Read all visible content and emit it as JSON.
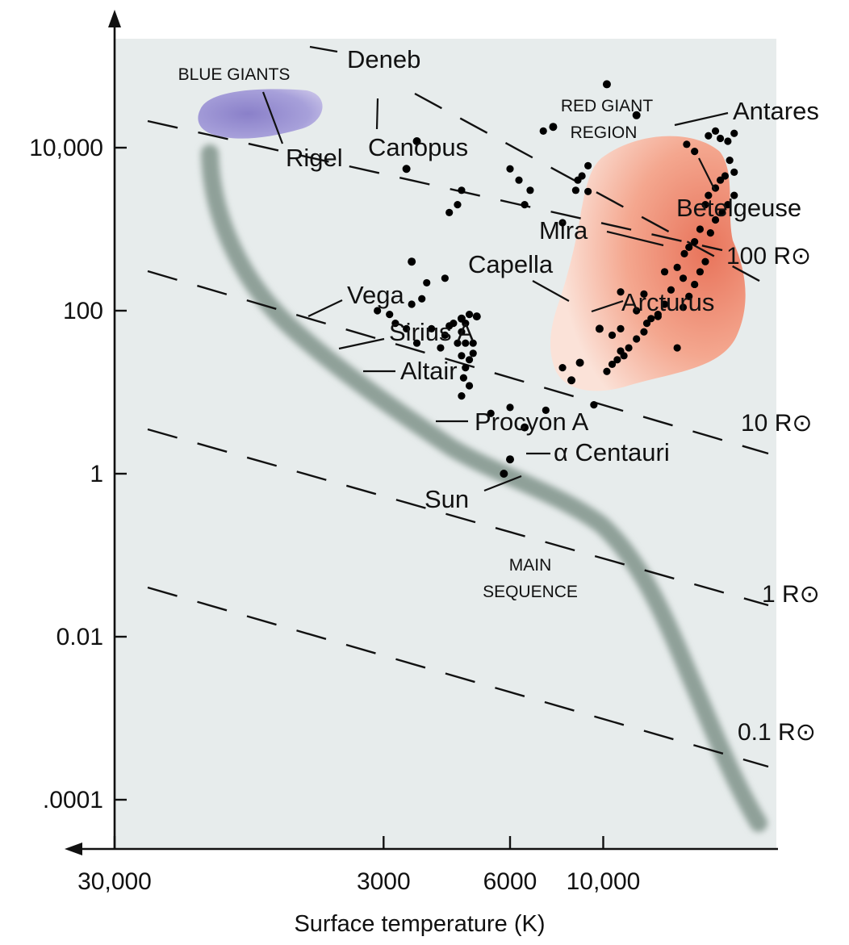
{
  "chart_data": {
    "type": "scatter",
    "title": "",
    "xlabel": "Surface temperature (K)",
    "ylabel": "",
    "x_scale": "log-reversed",
    "y_scale": "log",
    "xlim": [
      38000,
      2500
    ],
    "ylim": [
      3e-05,
      100000
    ],
    "x_ticks": [
      {
        "value": 30000,
        "label": "30,000"
      },
      {
        "value": 10000,
        "label": "10,000"
      },
      {
        "value": 6000,
        "label": "6000"
      },
      {
        "value": 3000,
        "label": "3000"
      }
    ],
    "y_ticks": [
      {
        "value": 10000,
        "label": "10,000"
      },
      {
        "value": 100,
        "label": "100"
      },
      {
        "value": 1,
        "label": "1"
      },
      {
        "value": 0.01,
        "label": "0.01"
      },
      {
        "value": 0.0001,
        "label": ".0001"
      }
    ],
    "regions": [
      {
        "label_lines": [
          "BLUE GIANTS"
        ],
        "color": "#8c86cc"
      },
      {
        "label_lines": [
          "RED GIANT",
          "REGION"
        ],
        "color": "#ee8a6e"
      },
      {
        "label_lines": [
          "MAIN",
          "SEQUENCE"
        ],
        "color": "#7f9188"
      }
    ],
    "radius_lines": [
      {
        "label": "100 R⊙",
        "radius_rsun": 100
      },
      {
        "label": "10 R⊙",
        "radius_rsun": 10
      },
      {
        "label": "1 R⊙",
        "radius_rsun": 1
      },
      {
        "label": "0.1 R⊙",
        "radius_rsun": 0.1
      }
    ],
    "named_stars": [
      {
        "name": "Deneb",
        "temperature": 10200,
        "luminosity": 60000
      },
      {
        "name": "Rigel",
        "temperature": 12000,
        "luminosity": 25000
      },
      {
        "name": "Canopus",
        "temperature": 7600,
        "luminosity": 18000
      },
      {
        "name": "Antares",
        "temperature": 3600,
        "luminosity": 12000
      },
      {
        "name": "Betelgeuse",
        "temperature": 3400,
        "luminosity": 5500
      },
      {
        "name": "Mira",
        "temperature": 3500,
        "luminosity": 400
      },
      {
        "name": "Capella",
        "temperature": 5000,
        "luminosity": 85
      },
      {
        "name": "Arcturus",
        "temperature": 4600,
        "luminosity": 80
      },
      {
        "name": "Vega",
        "temperature": 9800,
        "luminosity": 60
      },
      {
        "name": "Sirius A",
        "temperature": 8800,
        "luminosity": 23
      },
      {
        "name": "Altair",
        "temperature": 8400,
        "luminosity": 14
      },
      {
        "name": "Procyon A",
        "temperature": 6500,
        "luminosity": 3.7
      },
      {
        "name": "α Centauri",
        "temperature": 6000,
        "luminosity": 1.5
      },
      {
        "name": "Sun",
        "temperature": 5800,
        "luminosity": 1
      }
    ],
    "other_stars": [
      [
        20500,
        15000
      ],
      [
        19800,
        12000
      ],
      [
        19000,
        13000
      ],
      [
        18500,
        16000
      ],
      [
        17800,
        14000
      ],
      [
        16500,
        9000
      ],
      [
        15800,
        11000
      ],
      [
        20000,
        7000
      ],
      [
        20500,
        5000
      ],
      [
        19500,
        4500
      ],
      [
        19000,
        4000
      ],
      [
        18500,
        3200
      ],
      [
        17800,
        2600
      ],
      [
        20500,
        2600
      ],
      [
        19800,
        2000
      ],
      [
        19200,
        1600
      ],
      [
        18500,
        1300
      ],
      [
        18000,
        900
      ],
      [
        17500,
        2000
      ],
      [
        17000,
        1000
      ],
      [
        16500,
        700
      ],
      [
        16000,
        600
      ],
      [
        15600,
        500
      ],
      [
        15000,
        340
      ],
      [
        15500,
        250
      ],
      [
        17500,
        400
      ],
      [
        17000,
        300
      ],
      [
        16500,
        210
      ],
      [
        16000,
        150
      ],
      [
        15500,
        110
      ],
      [
        14500,
        180
      ],
      [
        14000,
        120
      ],
      [
        13500,
        90
      ],
      [
        13000,
        80
      ],
      [
        12700,
        70
      ],
      [
        12500,
        55
      ],
      [
        12000,
        45
      ],
      [
        11500,
        35
      ],
      [
        11200,
        28
      ],
      [
        11000,
        32
      ],
      [
        10800,
        25
      ],
      [
        10500,
        22
      ],
      [
        10200,
        18
      ],
      [
        11000,
        60
      ],
      [
        10500,
        50
      ],
      [
        12000,
        100
      ],
      [
        13500,
        85
      ],
      [
        12500,
        160
      ],
      [
        11000,
        170
      ],
      [
        14000,
        300
      ],
      [
        15000,
        35
      ],
      [
        9200,
        6000
      ],
      [
        8900,
        4500
      ],
      [
        8600,
        3000
      ],
      [
        8700,
        4000
      ],
      [
        9200,
        2900
      ],
      [
        8000,
        1200
      ],
      [
        7200,
        16000
      ],
      [
        6700,
        3000
      ],
      [
        6500,
        2000
      ],
      [
        6300,
        4000
      ],
      [
        6000,
        5500
      ],
      [
        4600,
        3000
      ],
      [
        4500,
        2000
      ],
      [
        4300,
        1600
      ],
      [
        8000,
        20
      ],
      [
        7300,
        6
      ],
      [
        9500,
        7
      ],
      [
        6000,
        6.5
      ],
      [
        5400,
        5.5
      ],
      [
        4800,
        90
      ],
      [
        4700,
        70
      ],
      [
        4600,
        55
      ],
      [
        4900,
        30
      ],
      [
        4800,
        25
      ],
      [
        4700,
        20
      ],
      [
        4650,
        15
      ],
      [
        4800,
        12
      ],
      [
        4600,
        9
      ],
      [
        4900,
        40
      ],
      [
        4700,
        40
      ],
      [
        4600,
        28
      ],
      [
        4300,
        65
      ],
      [
        4200,
        50
      ],
      [
        4400,
        70
      ],
      [
        4500,
        40
      ],
      [
        4100,
        35
      ],
      [
        3900,
        60
      ],
      [
        3700,
        140
      ],
      [
        3600,
        40
      ],
      [
        3400,
        60
      ],
      [
        3200,
        70
      ],
      [
        3100,
        90
      ],
      [
        2900,
        100
      ],
      [
        4200,
        250
      ],
      [
        3800,
        220
      ],
      [
        3500,
        120
      ]
    ]
  }
}
